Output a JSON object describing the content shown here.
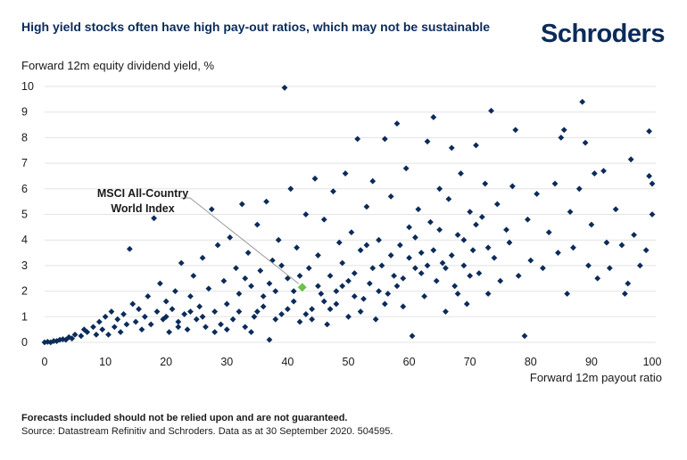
{
  "header": {
    "title": "High yield stocks often have high pay-out ratios, which may not be sustainable",
    "logo": "Schroders"
  },
  "footer": {
    "note": "Forecasts included should not be relied upon and are not guaranteed.",
    "source": "Source: Datastream Refinitiv and Schroders. Data as at 30 September 2020. 504595."
  },
  "chart_data": {
    "type": "scatter",
    "title": "High yield stocks often have high pay-out ratios, which may not be sustainable",
    "xlabel": "Forward 12m payout ratio",
    "ylabel": "Forward 12m equity dividend yield, %",
    "xlim": [
      0,
      100
    ],
    "ylim": [
      0,
      10
    ],
    "xticks": [
      "0",
      "10",
      "20",
      "30",
      "40",
      "50",
      "60",
      "70",
      "80",
      "90",
      "100"
    ],
    "yticks": [
      "0",
      "1",
      "2",
      "3",
      "4",
      "5",
      "6",
      "7",
      "8",
      "9",
      "10"
    ],
    "grid": "horizontal",
    "colors": {
      "points": "#0b2b5a",
      "highlight": "#6cc24a"
    },
    "highlight": {
      "label_line1": "MSCI All-Country",
      "label_line2": "World Index",
      "x": 42.4,
      "y": 2.15
    },
    "points": [
      [
        0,
        0
      ],
      [
        0.5,
        0.02
      ],
      [
        1,
        0
      ],
      [
        1.5,
        0.05
      ],
      [
        2,
        0.05
      ],
      [
        2.5,
        0.1
      ],
      [
        3,
        0.12
      ],
      [
        3.5,
        0.1
      ],
      [
        4,
        0.2
      ],
      [
        4.5,
        0.15
      ],
      [
        5,
        0.3
      ],
      [
        6,
        0.25
      ],
      [
        6.5,
        0.5
      ],
      [
        7,
        0.4
      ],
      [
        8,
        0.6
      ],
      [
        8.5,
        0.3
      ],
      [
        9,
        0.8
      ],
      [
        9.5,
        0.5
      ],
      [
        10,
        1.0
      ],
      [
        10.5,
        0.3
      ],
      [
        11,
        1.2
      ],
      [
        11.5,
        0.6
      ],
      [
        12,
        0.9
      ],
      [
        12.5,
        0.4
      ],
      [
        13,
        1.1
      ],
      [
        13.5,
        0.7
      ],
      [
        14,
        3.65
      ],
      [
        14.5,
        1.5
      ],
      [
        15,
        0.8
      ],
      [
        15.5,
        1.3
      ],
      [
        16,
        0.5
      ],
      [
        16.5,
        1.0
      ],
      [
        17,
        1.8
      ],
      [
        17.5,
        0.7
      ],
      [
        18,
        4.85
      ],
      [
        18.5,
        1.2
      ],
      [
        19,
        2.3
      ],
      [
        19.5,
        0.9
      ],
      [
        20,
        1.6
      ],
      [
        20.5,
        0.4
      ],
      [
        21,
        1.3
      ],
      [
        21.5,
        2.0
      ],
      [
        22,
        0.8
      ],
      [
        22.5,
        3.1
      ],
      [
        23,
        1.1
      ],
      [
        23.5,
        0.5
      ],
      [
        24,
        1.8
      ],
      [
        24.5,
        2.6
      ],
      [
        25,
        0.9
      ],
      [
        25.5,
        1.4
      ],
      [
        26,
        3.3
      ],
      [
        26.5,
        0.6
      ],
      [
        27,
        2.1
      ],
      [
        27.5,
        5.2
      ],
      [
        28,
        1.2
      ],
      [
        28.5,
        3.8
      ],
      [
        29,
        0.7
      ],
      [
        29.5,
        2.4
      ],
      [
        30,
        1.5
      ],
      [
        30.5,
        4.1
      ],
      [
        31,
        0.9
      ],
      [
        31.5,
        2.9
      ],
      [
        32,
        1.9
      ],
      [
        32.5,
        5.4
      ],
      [
        33,
        0.6
      ],
      [
        33.5,
        3.5
      ],
      [
        34,
        2.2
      ],
      [
        34.5,
        1.0
      ],
      [
        35,
        4.6
      ],
      [
        35.5,
        2.8
      ],
      [
        36,
        1.4
      ],
      [
        36.5,
        5.5
      ],
      [
        37,
        0.1
      ],
      [
        37.5,
        3.2
      ],
      [
        38,
        2.0
      ],
      [
        38.5,
        4.0
      ],
      [
        39,
        1.1
      ],
      [
        39.5,
        9.95
      ],
      [
        40,
        2.5
      ],
      [
        40.5,
        6.0
      ],
      [
        41,
        1.6
      ],
      [
        41.5,
        3.7
      ],
      [
        42,
        0.8
      ],
      [
        43,
        5.0
      ],
      [
        43.5,
        2.9
      ],
      [
        44,
        1.3
      ],
      [
        44.5,
        6.4
      ],
      [
        45,
        3.4
      ],
      [
        45.5,
        1.9
      ],
      [
        46,
        4.8
      ],
      [
        46.5,
        0.7
      ],
      [
        47,
        2.6
      ],
      [
        47.5,
        5.9
      ],
      [
        48,
        1.5
      ],
      [
        48.5,
        3.9
      ],
      [
        49,
        2.2
      ],
      [
        49.5,
        6.6
      ],
      [
        50,
        1.0
      ],
      [
        50.5,
        4.3
      ],
      [
        51,
        2.7
      ],
      [
        51.5,
        7.95
      ],
      [
        52,
        3.6
      ],
      [
        52.5,
        1.7
      ],
      [
        53,
        5.3
      ],
      [
        53.5,
        2.3
      ],
      [
        54,
        6.3
      ],
      [
        54.5,
        0.9
      ],
      [
        55,
        4.0
      ],
      [
        55.5,
        3.0
      ],
      [
        56,
        7.95
      ],
      [
        56.5,
        1.9
      ],
      [
        57,
        5.7
      ],
      [
        57.5,
        2.6
      ],
      [
        58,
        8.55
      ],
      [
        58.5,
        3.8
      ],
      [
        59,
        1.4
      ],
      [
        59.5,
        6.8
      ],
      [
        60,
        4.5
      ],
      [
        60.5,
        0.25
      ],
      [
        61,
        2.9
      ],
      [
        61.5,
        5.2
      ],
      [
        62,
        3.5
      ],
      [
        62.5,
        1.8
      ],
      [
        63,
        7.85
      ],
      [
        63.5,
        4.7
      ],
      [
        64,
        8.8
      ],
      [
        64.5,
        2.4
      ],
      [
        65,
        6.0
      ],
      [
        65.5,
        3.1
      ],
      [
        66,
        1.2
      ],
      [
        66.5,
        5.6
      ],
      [
        67,
        7.6
      ],
      [
        67.5,
        2.2
      ],
      [
        68,
        4.2
      ],
      [
        68.5,
        6.6
      ],
      [
        69,
        3.0
      ],
      [
        69.5,
        1.5
      ],
      [
        70,
        5.1
      ],
      [
        70.5,
        3.6
      ],
      [
        71,
        7.7
      ],
      [
        71.5,
        2.7
      ],
      [
        72,
        4.9
      ],
      [
        72.5,
        6.2
      ],
      [
        73,
        1.9
      ],
      [
        73.5,
        9.05
      ],
      [
        74,
        3.3
      ],
      [
        74.5,
        5.4
      ],
      [
        75,
        2.4
      ],
      [
        76,
        4.4
      ],
      [
        76.5,
        3.9
      ],
      [
        77,
        6.1
      ],
      [
        77.5,
        8.3
      ],
      [
        78,
        2.6
      ],
      [
        79,
        0.25
      ],
      [
        79.5,
        4.8
      ],
      [
        80,
        3.2
      ],
      [
        81,
        5.8
      ],
      [
        82,
        2.9
      ],
      [
        83,
        4.3
      ],
      [
        84,
        6.2
      ],
      [
        84.5,
        3.5
      ],
      [
        85,
        8.0
      ],
      [
        85.5,
        8.3
      ],
      [
        86,
        1.9
      ],
      [
        86.5,
        5.1
      ],
      [
        87,
        3.7
      ],
      [
        88,
        6.0
      ],
      [
        88.5,
        9.4
      ],
      [
        89,
        7.8
      ],
      [
        89.5,
        3.0
      ],
      [
        90,
        4.6
      ],
      [
        90.5,
        6.6
      ],
      [
        91,
        2.5
      ],
      [
        92,
        6.7
      ],
      [
        92.5,
        3.9
      ],
      [
        93,
        2.9
      ],
      [
        94,
        5.2
      ],
      [
        95,
        3.8
      ],
      [
        95.5,
        1.9
      ],
      [
        96,
        2.3
      ],
      [
        96.5,
        7.15
      ],
      [
        97,
        4.2
      ],
      [
        98,
        3.0
      ],
      [
        99,
        3.6
      ],
      [
        99.5,
        8.25
      ],
      [
        99.5,
        6.5
      ],
      [
        100,
        6.2
      ],
      [
        100,
        5.0
      ],
      [
        30,
        0.5
      ],
      [
        32,
        1.2
      ],
      [
        34,
        0.4
      ],
      [
        36,
        1.8
      ],
      [
        38,
        0.9
      ],
      [
        40,
        1.3
      ],
      [
        42,
        2.6
      ],
      [
        44,
        0.9
      ],
      [
        46,
        1.6
      ],
      [
        48,
        2.0
      ],
      [
        50,
        2.4
      ],
      [
        52,
        1.2
      ],
      [
        54,
        2.9
      ],
      [
        56,
        1.5
      ],
      [
        58,
        2.2
      ],
      [
        60,
        3.3
      ],
      [
        62,
        2.7
      ],
      [
        64,
        3.6
      ],
      [
        66,
        2.9
      ],
      [
        68,
        1.9
      ],
      [
        70,
        2.6
      ],
      [
        26,
        1.0
      ],
      [
        28,
        0.4
      ],
      [
        24,
        1.2
      ],
      [
        22,
        0.6
      ],
      [
        20,
        1.0
      ],
      [
        33,
        2.5
      ],
      [
        35,
        1.2
      ],
      [
        37,
        2.3
      ],
      [
        39,
        3.0
      ],
      [
        41,
        2.0
      ],
      [
        43,
        1.1
      ],
      [
        45,
        2.2
      ],
      [
        47,
        1.3
      ],
      [
        49,
        3.1
      ],
      [
        51,
        1.8
      ],
      [
        53,
        3.8
      ],
      [
        55,
        2.0
      ],
      [
        57,
        3.4
      ],
      [
        59,
        2.5
      ],
      [
        61,
        4.1
      ],
      [
        63,
        3.0
      ],
      [
        65,
        4.4
      ],
      [
        67,
        3.4
      ],
      [
        69,
        4.0
      ],
      [
        71,
        4.6
      ],
      [
        73,
        3.7
      ]
    ]
  }
}
